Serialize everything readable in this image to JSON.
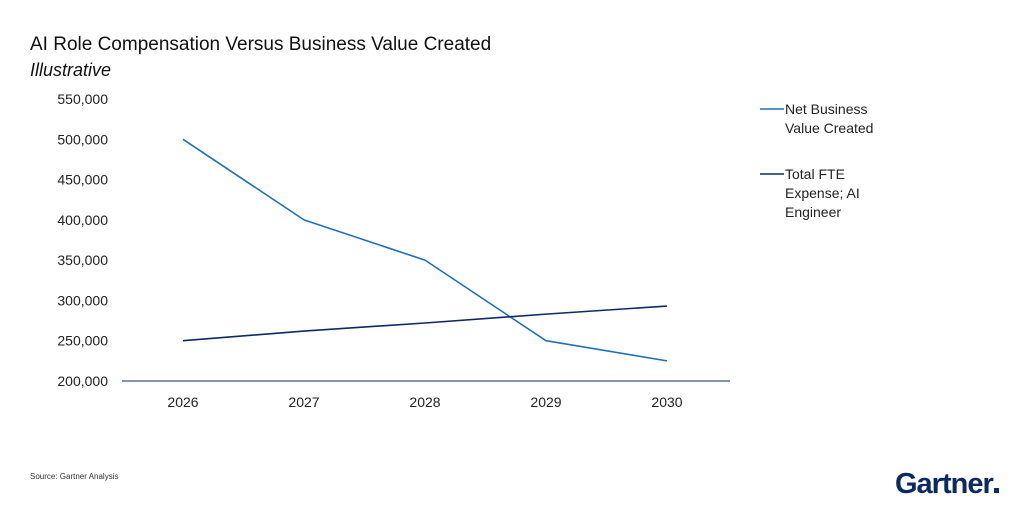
{
  "header": {
    "title": "AI Role Compensation Versus Business Value Created",
    "subtitle": "Illustrative"
  },
  "footer": {
    "source": "Source: Gartner Analysis",
    "logo": "Gartner"
  },
  "chart_data": {
    "type": "line",
    "categories": [
      "2026",
      "2027",
      "2028",
      "2029",
      "2030"
    ],
    "ylim": [
      200000,
      550000
    ],
    "yticks": [
      "200,000",
      "250,000",
      "300,000",
      "350,000",
      "400,000",
      "450,000",
      "500,000",
      "550,000"
    ],
    "ytick_values": [
      200000,
      250000,
      300000,
      350000,
      400000,
      450000,
      500000,
      550000
    ],
    "grid": false,
    "legend_position": "right",
    "series": [
      {
        "name": "Net Business Value Created",
        "legend_lines": [
          "Net Business",
          "Value Created"
        ],
        "color": "#1f6fbf",
        "values": [
          500000,
          400000,
          350000,
          250000,
          225000
        ]
      },
      {
        "name": "Total FTE Expense; AI Engineer",
        "legend_lines": [
          "Total FTE",
          "Expense; AI",
          "Engineer"
        ],
        "color": "#0b2a63",
        "values": [
          250000,
          262000,
          272000,
          283000,
          293000
        ]
      }
    ]
  }
}
